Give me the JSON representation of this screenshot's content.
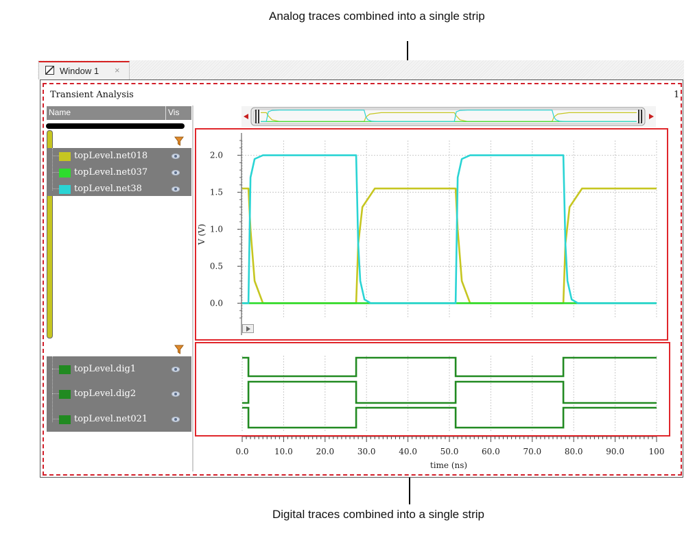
{
  "callouts": {
    "analog": "Analog traces combined into a single strip",
    "digital": "Digital traces combined into a single strip"
  },
  "tab": {
    "label": "Window 1",
    "close": "×"
  },
  "analysis": {
    "title": "Transient Analysis",
    "corner_number": "1"
  },
  "signal_list": {
    "col_name": "Name",
    "col_vis": "Vis",
    "analog": [
      {
        "name": "topLevel.net018",
        "color": "#c6c621"
      },
      {
        "name": "topLevel.net037",
        "color": "#2ddc2d"
      },
      {
        "name": "topLevel.net38",
        "color": "#2ad4d4"
      }
    ],
    "digital": [
      {
        "name": "topLevel.dig1",
        "color": "#218a21"
      },
      {
        "name": "topLevel.dig2",
        "color": "#218a21"
      },
      {
        "name": "topLevel.net021",
        "color": "#218a21"
      }
    ]
  },
  "chart_data": [
    {
      "type": "line",
      "title": "",
      "xlabel": "time (ns)",
      "ylabel": "V (V)",
      "xlim": [
        0,
        100
      ],
      "ylim": [
        -0.2,
        2.2
      ],
      "yticks": [
        0.0,
        0.5,
        1.0,
        1.5,
        2.0
      ],
      "ytick_labels": [
        "0.0",
        "0.5",
        "1.0",
        "1.5",
        "2.0"
      ],
      "grid": true,
      "series": [
        {
          "name": "topLevel.net018",
          "color": "#c6c621",
          "x": [
            0,
            1.5,
            2,
            3,
            5,
            27.5,
            28,
            29,
            32,
            51,
            51.5,
            52,
            53,
            55,
            77.5,
            78,
            79,
            82,
            100
          ],
          "y": [
            1.55,
            1.55,
            1.0,
            0.3,
            0.0,
            0.0,
            0.8,
            1.3,
            1.55,
            1.55,
            1.55,
            1.0,
            0.3,
            0.0,
            0.0,
            0.8,
            1.3,
            1.55,
            1.55
          ]
        },
        {
          "name": "topLevel.net037",
          "color": "#2ddc2d",
          "x": [
            0,
            100
          ],
          "y": [
            0.0,
            0.0
          ]
        },
        {
          "name": "topLevel.net38",
          "color": "#2ad4d4",
          "x": [
            0,
            1.5,
            2,
            3,
            5,
            27.5,
            28,
            28.5,
            29.5,
            31,
            51,
            51.5,
            52,
            53,
            55,
            77.5,
            78,
            78.5,
            79.5,
            81,
            100
          ],
          "y": [
            0.0,
            0.0,
            1.7,
            1.95,
            2.0,
            2.0,
            0.8,
            0.3,
            0.05,
            0.0,
            0.0,
            0.0,
            1.7,
            1.95,
            2.0,
            2.0,
            0.8,
            0.3,
            0.05,
            0.0,
            0.0
          ]
        }
      ]
    },
    {
      "type": "line",
      "title": "",
      "xlabel": "time (ns)",
      "ylabel": "",
      "xlim": [
        0,
        100
      ],
      "xticks": [
        0,
        10,
        20,
        30,
        40,
        50,
        60,
        70,
        80,
        90,
        100
      ],
      "xtick_labels": [
        "0.0",
        "10.0",
        "20.0",
        "30.0",
        "40.0",
        "50.0",
        "60.0",
        "70.0",
        "80.0",
        "90.0",
        "100"
      ],
      "series": [
        {
          "name": "topLevel.dig1",
          "color": "#218a21",
          "x": [
            0,
            1.5,
            1.5,
            27.5,
            27.5,
            51.5,
            51.5,
            77.5,
            77.5,
            100
          ],
          "y": [
            1,
            1,
            0,
            0,
            1,
            1,
            0,
            0,
            1,
            1
          ]
        },
        {
          "name": "topLevel.dig2",
          "color": "#218a21",
          "x": [
            0,
            1.5,
            1.5,
            27.5,
            27.5,
            51.5,
            51.5,
            77.5,
            77.5,
            100
          ],
          "y": [
            0,
            0,
            1,
            1,
            0,
            0,
            1,
            1,
            0,
            0
          ]
        },
        {
          "name": "topLevel.net021",
          "color": "#218a21",
          "x": [
            0,
            1.5,
            1.5,
            27.5,
            27.5,
            51.5,
            51.5,
            77.5,
            77.5,
            100
          ],
          "y": [
            1,
            1,
            0,
            0,
            1,
            1,
            0,
            0,
            1,
            1
          ]
        }
      ]
    }
  ]
}
